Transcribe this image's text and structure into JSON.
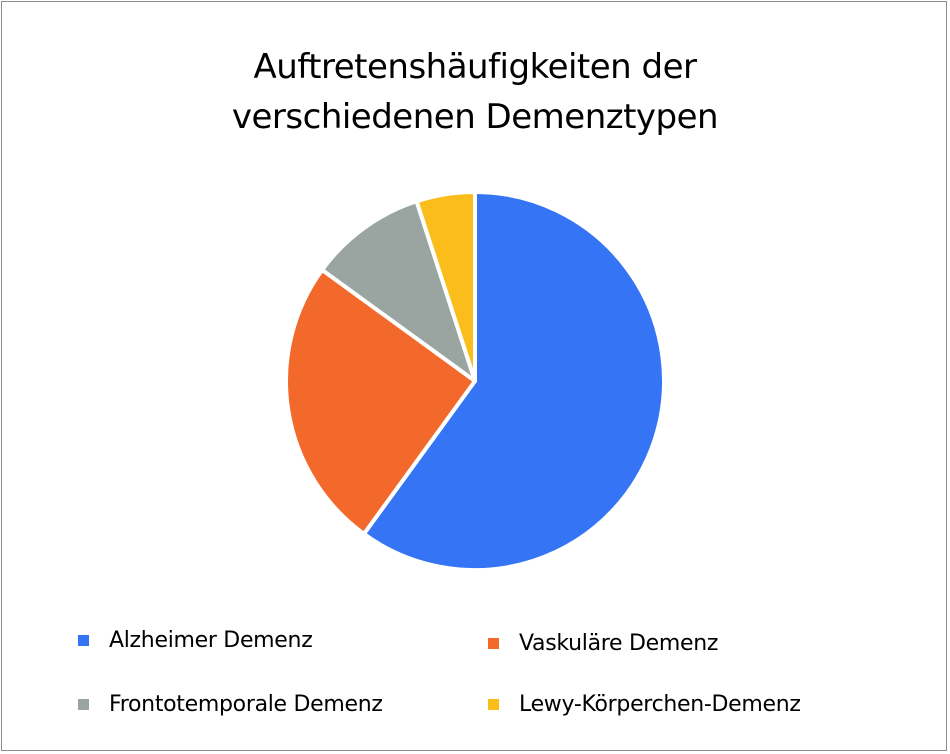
{
  "chart_data": {
    "type": "pie",
    "title": "Auftretenshäufigkeiten der verschiedenen Demenztypen",
    "title_lines": [
      "Auftretenshäufigkeiten der",
      "verschiedenen Demenztypen"
    ],
    "categories": [
      "Alzheimer Demenz",
      "Vaskuläre Demenz",
      "Frontotemporale Demenz",
      "Lewy-Körperchen-Demenz"
    ],
    "values": [
      60,
      25,
      10,
      5
    ],
    "colors": [
      "#3574f4",
      "#f3692b",
      "#9aa5a2",
      "#fbbd1c"
    ],
    "legend_position": "bottom",
    "start_angle": "12 o'clock",
    "direction": "clockwise"
  }
}
